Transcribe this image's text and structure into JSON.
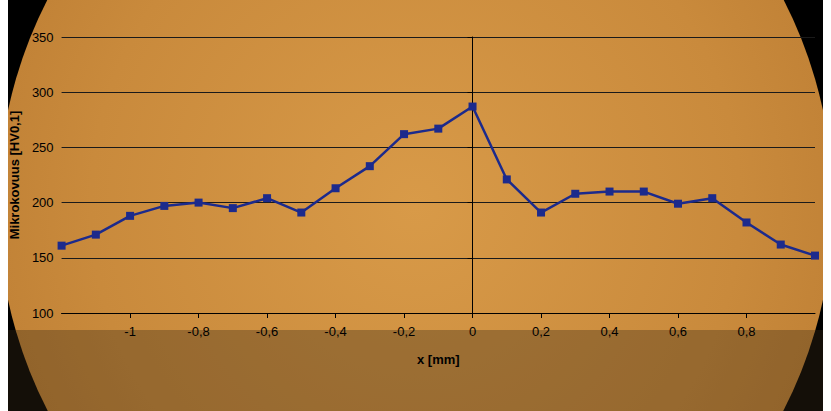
{
  "chart_data": {
    "type": "line",
    "xlabel": "x [mm]",
    "ylabel": "Mikrokovuus [HV0,1]",
    "x": [
      -1.2,
      -1.1,
      -1.0,
      -0.9,
      -0.8,
      -0.7,
      -0.6,
      -0.5,
      -0.4,
      -0.3,
      -0.2,
      -0.1,
      0,
      0.1,
      0.2,
      0.3,
      0.4,
      0.5,
      0.6,
      0.7,
      0.8,
      0.9,
      1.0
    ],
    "values": [
      161,
      171,
      188,
      197,
      200,
      195,
      204,
      191,
      213,
      233,
      262,
      267,
      287,
      221,
      191,
      208,
      210,
      210,
      199,
      204,
      182,
      162,
      152
    ],
    "color": "#1c2a8c",
    "marker": "square",
    "xlim": [
      -1.2,
      1.0
    ],
    "xticks": [
      -1,
      {
        "value": -0.8,
        "label": "-0,8"
      },
      {
        "value": -0.6,
        "label": "-0,6"
      },
      {
        "value": -0.4,
        "label": "-0,4"
      },
      {
        "value": -0.2,
        "label": "-0,2"
      },
      0,
      {
        "value": 0.2,
        "label": "0,2"
      },
      {
        "value": 0.4,
        "label": "0,4"
      },
      {
        "value": 0.6,
        "label": "0,6"
      },
      {
        "value": 0.8,
        "label": "0,8"
      }
    ],
    "ylim": [
      100,
      350
    ],
    "yticks": [
      100,
      150,
      200,
      250,
      300,
      350
    ],
    "grid": true
  }
}
